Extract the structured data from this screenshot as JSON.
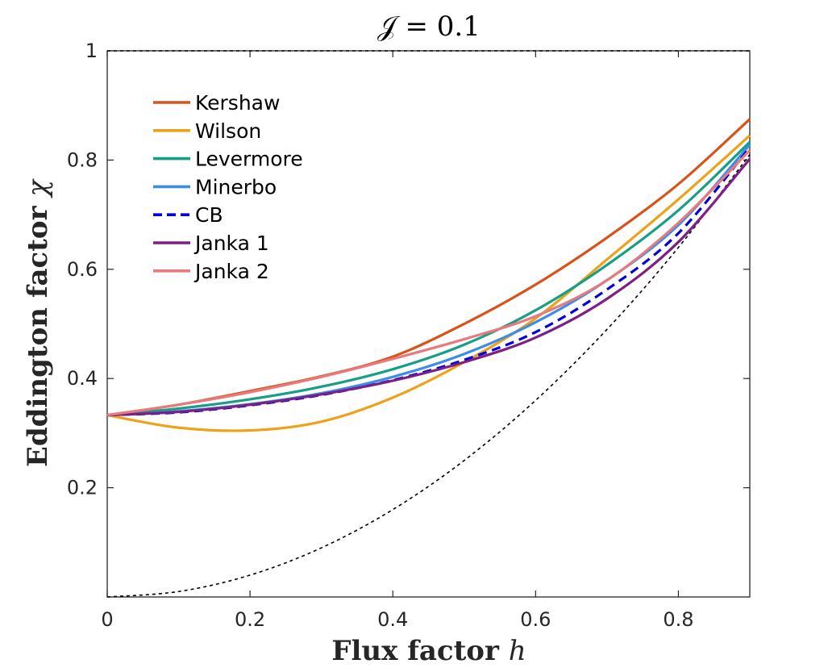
{
  "chart_data": {
    "type": "line",
    "title": "𝒥 = 0.1",
    "xlabel_text": "Flux factor",
    "xlabel_symbol": "h",
    "ylabel_text": "Eddington factor",
    "ylabel_symbol": "χ",
    "xlim": [
      0,
      0.9
    ],
    "ylim": [
      0,
      1
    ],
    "xticks": [
      0,
      0.2,
      0.4,
      0.6,
      0.8
    ],
    "xtick_labels": [
      "0",
      "0.2",
      "0.4",
      "0.6",
      "0.8"
    ],
    "yticks": [
      0.2,
      0.4,
      0.6,
      0.8,
      1
    ],
    "ytick_labels": [
      "0.2",
      "0.4",
      "0.6",
      "0.8",
      "1"
    ],
    "legend_position": "top-left",
    "grid": false,
    "x": [
      0,
      0.1,
      0.2,
      0.3,
      0.4,
      0.5,
      0.6,
      0.7,
      0.8,
      0.9
    ],
    "series": [
      {
        "name": "Kershaw",
        "color": "#D95319",
        "dash": "solid",
        "values": [
          0.333,
          0.352,
          0.377,
          0.404,
          0.44,
          0.5,
          0.572,
          0.658,
          0.756,
          0.875
        ]
      },
      {
        "name": "Wilson",
        "color": "#EDA21A",
        "dash": "solid",
        "values": [
          0.333,
          0.31,
          0.305,
          0.321,
          0.365,
          0.43,
          0.51,
          0.618,
          0.728,
          0.845
        ]
      },
      {
        "name": "Levermore",
        "color": "#179E86",
        "dash": "solid",
        "values": [
          0.333,
          0.345,
          0.362,
          0.385,
          0.417,
          0.462,
          0.525,
          0.608,
          0.708,
          0.833
        ]
      },
      {
        "name": "Minerbo",
        "color": "#3A8EE8",
        "dash": "solid",
        "values": [
          0.333,
          0.34,
          0.353,
          0.373,
          0.403,
          0.445,
          0.503,
          0.58,
          0.681,
          0.828
        ]
      },
      {
        "name": "CB",
        "color": "#0000DD",
        "dash": "dashed",
        "values": [
          0.333,
          0.338,
          0.351,
          0.37,
          0.397,
          0.434,
          0.485,
          0.563,
          0.666,
          0.823
        ]
      },
      {
        "name": "Janka 1",
        "color": "#7E1F86",
        "dash": "solid",
        "values": [
          0.333,
          0.339,
          0.352,
          0.371,
          0.396,
          0.43,
          0.475,
          0.546,
          0.65,
          0.802
        ]
      },
      {
        "name": "Janka 2",
        "color": "#E8797C",
        "dash": "solid",
        "values": [
          0.333,
          0.352,
          0.375,
          0.403,
          0.436,
          0.472,
          0.514,
          0.58,
          0.685,
          0.818
        ]
      }
    ],
    "reference_curves": [
      {
        "name": "upper bound",
        "color": "#000000",
        "dash": "dotted",
        "values": [
          1,
          1,
          1,
          1,
          1,
          1,
          1,
          1,
          1,
          1
        ]
      },
      {
        "name": "lower bound",
        "color": "#000000",
        "dash": "dotted",
        "values": [
          0,
          0.01,
          0.04,
          0.09,
          0.16,
          0.25,
          0.36,
          0.49,
          0.64,
          0.81
        ]
      }
    ]
  }
}
